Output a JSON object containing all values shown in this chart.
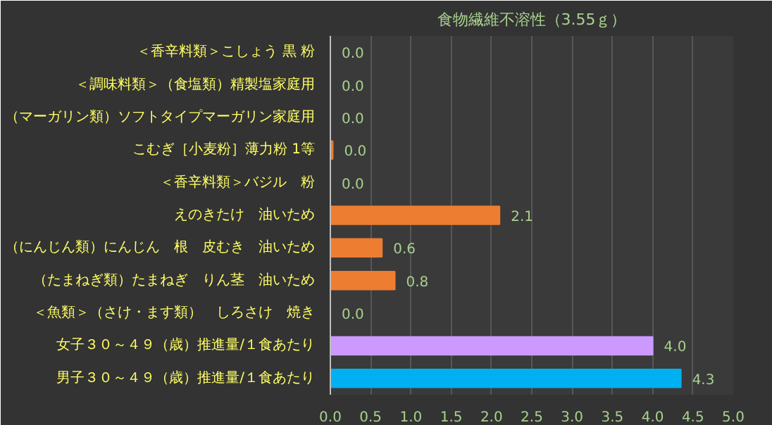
{
  "chart_data": {
    "type": "bar",
    "orientation": "horizontal",
    "title": "食物繊維不溶性（3.55ｇ）",
    "categories": [
      "＜香辛料類＞こしょう 黒 粉",
      "＜調味料類＞（食塩類）精製塩家庭用",
      "（マーガリン類）ソフトタイプマーガリン家庭用",
      "こむぎ［小麦粉］薄力粉 1等",
      "＜香辛料類＞バジル　粉",
      "えのきたけ　油いため",
      "（にんじん類）にんじん　根　皮むき　油いため",
      "（たまねぎ類）たまねぎ　りん茎　油いため",
      "＜魚類＞（さけ・ます類）　しろさけ　焼き",
      "女子３０～４９（歳）推進量/１食あたり",
      "男子３０～４９（歳）推進量/１食あたり"
    ],
    "values": [
      0,
      0,
      0,
      0.03,
      0,
      2.1,
      0.64,
      0.8,
      0,
      4.0,
      4.35
    ],
    "value_labels": [
      "0.0",
      "0.0",
      "0.0",
      "0.0",
      "0.0",
      "2.1",
      "0.6",
      "0.8",
      "0.0",
      "4.0",
      "4.3"
    ],
    "colors": [
      "#ed7d31",
      "#ed7d31",
      "#ed7d31",
      "#ed7d31",
      "#ed7d31",
      "#ed7d31",
      "#ed7d31",
      "#ed7d31",
      "#ed7d31",
      "#cc99ff",
      "#00b0f0"
    ],
    "xlim": [
      0,
      5.0
    ],
    "xticks": [
      "0.0",
      "0.5",
      "1.0",
      "1.5",
      "2.0",
      "2.5",
      "3.0",
      "3.5",
      "4.0",
      "4.5",
      "5.0"
    ],
    "grid": "x"
  }
}
